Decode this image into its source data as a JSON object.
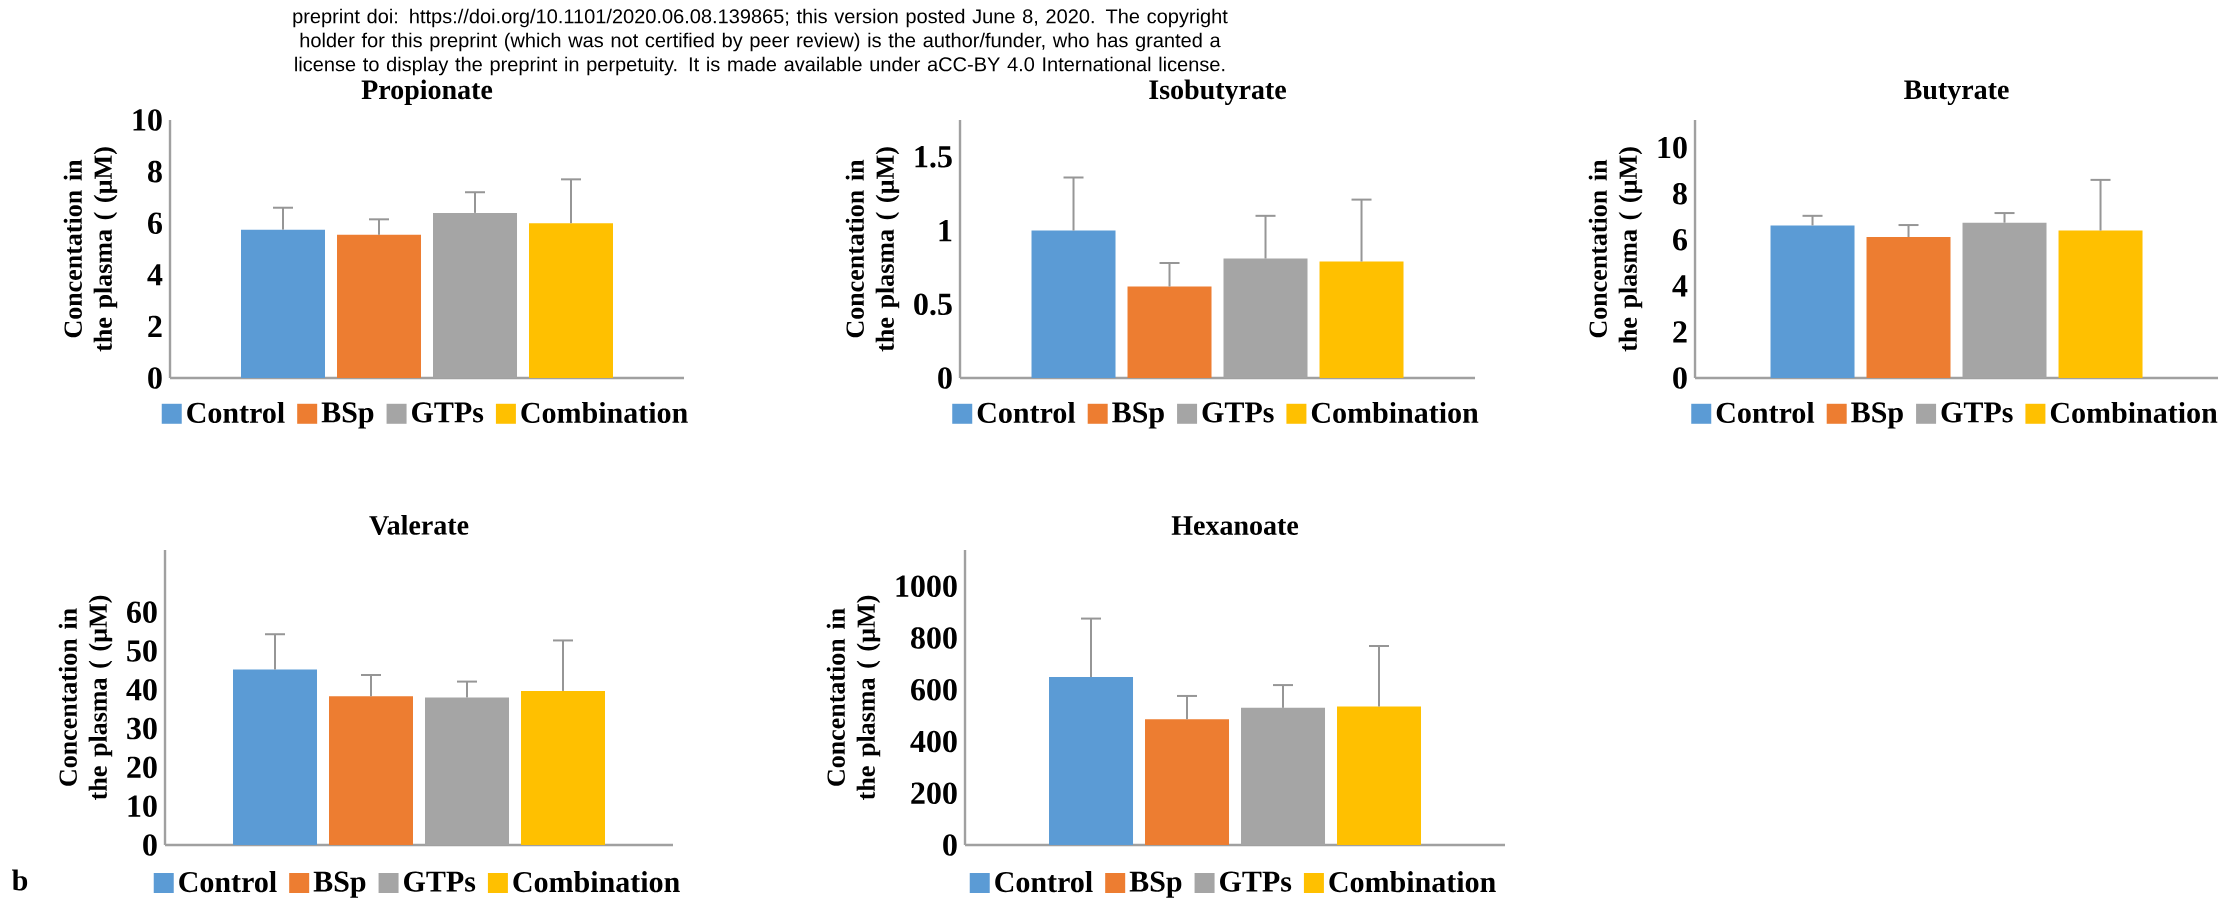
{
  "chart_data": [
    {
      "type": "bar",
      "title": "Propionate",
      "ylabel": "Concentation in the plasma ( (µM)",
      "categories": [
        null
      ],
      "ylim": [
        0,
        10
      ],
      "yticks": [
        0,
        2,
        4,
        6,
        8,
        10
      ],
      "legend": "bottom",
      "grid": false,
      "annotations": [
        "preprint doi: https://doi.org/10.1101/2020.06.08.139865; this version posted June 8, 2020. The copyright holder for this preprint (which was not certified by peer review) is the author/funder, who has granted a license to display the preprint in perpetuity. It is made available under aCC-BY 4.0 International license."
      ],
      "series": [
        {
          "name": "Control",
          "color": "#5b9bd5",
          "values": [
            5.75
          ],
          "errors": [
            [
              5.75,
              6.6
            ]
          ]
        },
        {
          "name": "BSp",
          "color": "#ed7d31",
          "values": [
            5.55
          ],
          "errors": [
            [
              5.55,
              6.15
            ]
          ]
        },
        {
          "name": "GTPs",
          "color": "#a5a5a5",
          "values": [
            6.4
          ],
          "errors": [
            [
              6.4,
              7.2
            ]
          ]
        },
        {
          "name": "Combination",
          "color": "#ffc000",
          "values": [
            6.0
          ],
          "errors": [
            [
              6.0,
              7.7
            ]
          ]
        }
      ]
    },
    {
      "type": "bar",
      "title": "Isobutyrate",
      "ylabel": "Concentation in the plasma ( (µM)",
      "categories": [
        null
      ],
      "ylim": [
        0,
        1.75
      ],
      "yticks": [
        0,
        0.5,
        1,
        1.5
      ],
      "legend": "bottom",
      "grid": false,
      "series": [
        {
          "name": "Control",
          "color": "#5b9bd5",
          "values": [
            1.0
          ],
          "errors": [
            [
              1.0,
              1.36
            ]
          ]
        },
        {
          "name": "BSp",
          "color": "#ed7d31",
          "values": [
            0.62
          ],
          "errors": [
            [
              0.62,
              0.78
            ]
          ]
        },
        {
          "name": "GTPs",
          "color": "#a5a5a5",
          "values": [
            0.81
          ],
          "errors": [
            [
              0.81,
              1.1
            ]
          ]
        },
        {
          "name": "Combination",
          "color": "#ffc000",
          "values": [
            0.79
          ],
          "errors": [
            [
              0.79,
              1.21
            ]
          ]
        }
      ]
    },
    {
      "type": "bar",
      "title": "Butyrate",
      "ylabel": "Concentation in the plasma ( (µM)",
      "categories": [
        null
      ],
      "ylim": [
        0,
        11.2
      ],
      "yticks": [
        0,
        2,
        4,
        6,
        8,
        10
      ],
      "legend": "bottom",
      "grid": false,
      "series": [
        {
          "name": "Control",
          "color": "#5b9bd5",
          "values": [
            6.62
          ],
          "errors": [
            [
              6.62,
              7.04
            ]
          ]
        },
        {
          "name": "BSp",
          "color": "#ed7d31",
          "values": [
            6.12
          ],
          "errors": [
            [
              6.12,
              6.64
            ]
          ]
        },
        {
          "name": "GTPs",
          "color": "#a5a5a5",
          "values": [
            6.74
          ],
          "errors": [
            [
              6.74,
              7.16
            ]
          ]
        },
        {
          "name": "Combination",
          "color": "#ffc000",
          "values": [
            6.4
          ],
          "errors": [
            [
              6.4,
              8.6
            ]
          ]
        }
      ]
    },
    {
      "type": "bar",
      "title": "Valerate",
      "ylabel": "Concentation in the plasma ( (µM)",
      "categories": [
        null
      ],
      "ylim": [
        0,
        76
      ],
      "yticks": [
        0,
        10,
        20,
        30,
        40,
        50,
        60
      ],
      "legend": "bottom",
      "grid": false,
      "annotations": [
        "b"
      ],
      "series": [
        {
          "name": "Control",
          "color": "#5b9bd5",
          "values": [
            45.2
          ],
          "errors": [
            [
              45.2,
              54.3
            ]
          ]
        },
        {
          "name": "BSp",
          "color": "#ed7d31",
          "values": [
            38.3
          ],
          "errors": [
            [
              38.3,
              43.8
            ]
          ]
        },
        {
          "name": "GTPs",
          "color": "#a5a5a5",
          "values": [
            38.0
          ],
          "errors": [
            [
              38.0,
              42.1
            ]
          ]
        },
        {
          "name": "Combination",
          "color": "#ffc000",
          "values": [
            39.7
          ],
          "errors": [
            [
              39.7,
              52.7
            ]
          ]
        }
      ]
    },
    {
      "type": "bar",
      "title": "Hexanoate",
      "ylabel": "Concentation in the plasma ( (µM)",
      "categories": [
        null
      ],
      "ylim": [
        0,
        1140
      ],
      "yticks": [
        0,
        200,
        400,
        600,
        800,
        1000
      ],
      "legend": "bottom",
      "grid": false,
      "series": [
        {
          "name": "Control",
          "color": "#5b9bd5",
          "values": [
            649
          ],
          "errors": [
            [
              649,
              875
            ]
          ]
        },
        {
          "name": "BSp",
          "color": "#ed7d31",
          "values": [
            486
          ],
          "errors": [
            [
              486,
              576
            ]
          ]
        },
        {
          "name": "GTPs",
          "color": "#a5a5a5",
          "values": [
            530
          ],
          "errors": [
            [
              530,
              618
            ]
          ]
        },
        {
          "name": "Combination",
          "color": "#ffc000",
          "values": [
            535
          ],
          "errors": [
            [
              535,
              769
            ]
          ]
        }
      ]
    }
  ]
}
